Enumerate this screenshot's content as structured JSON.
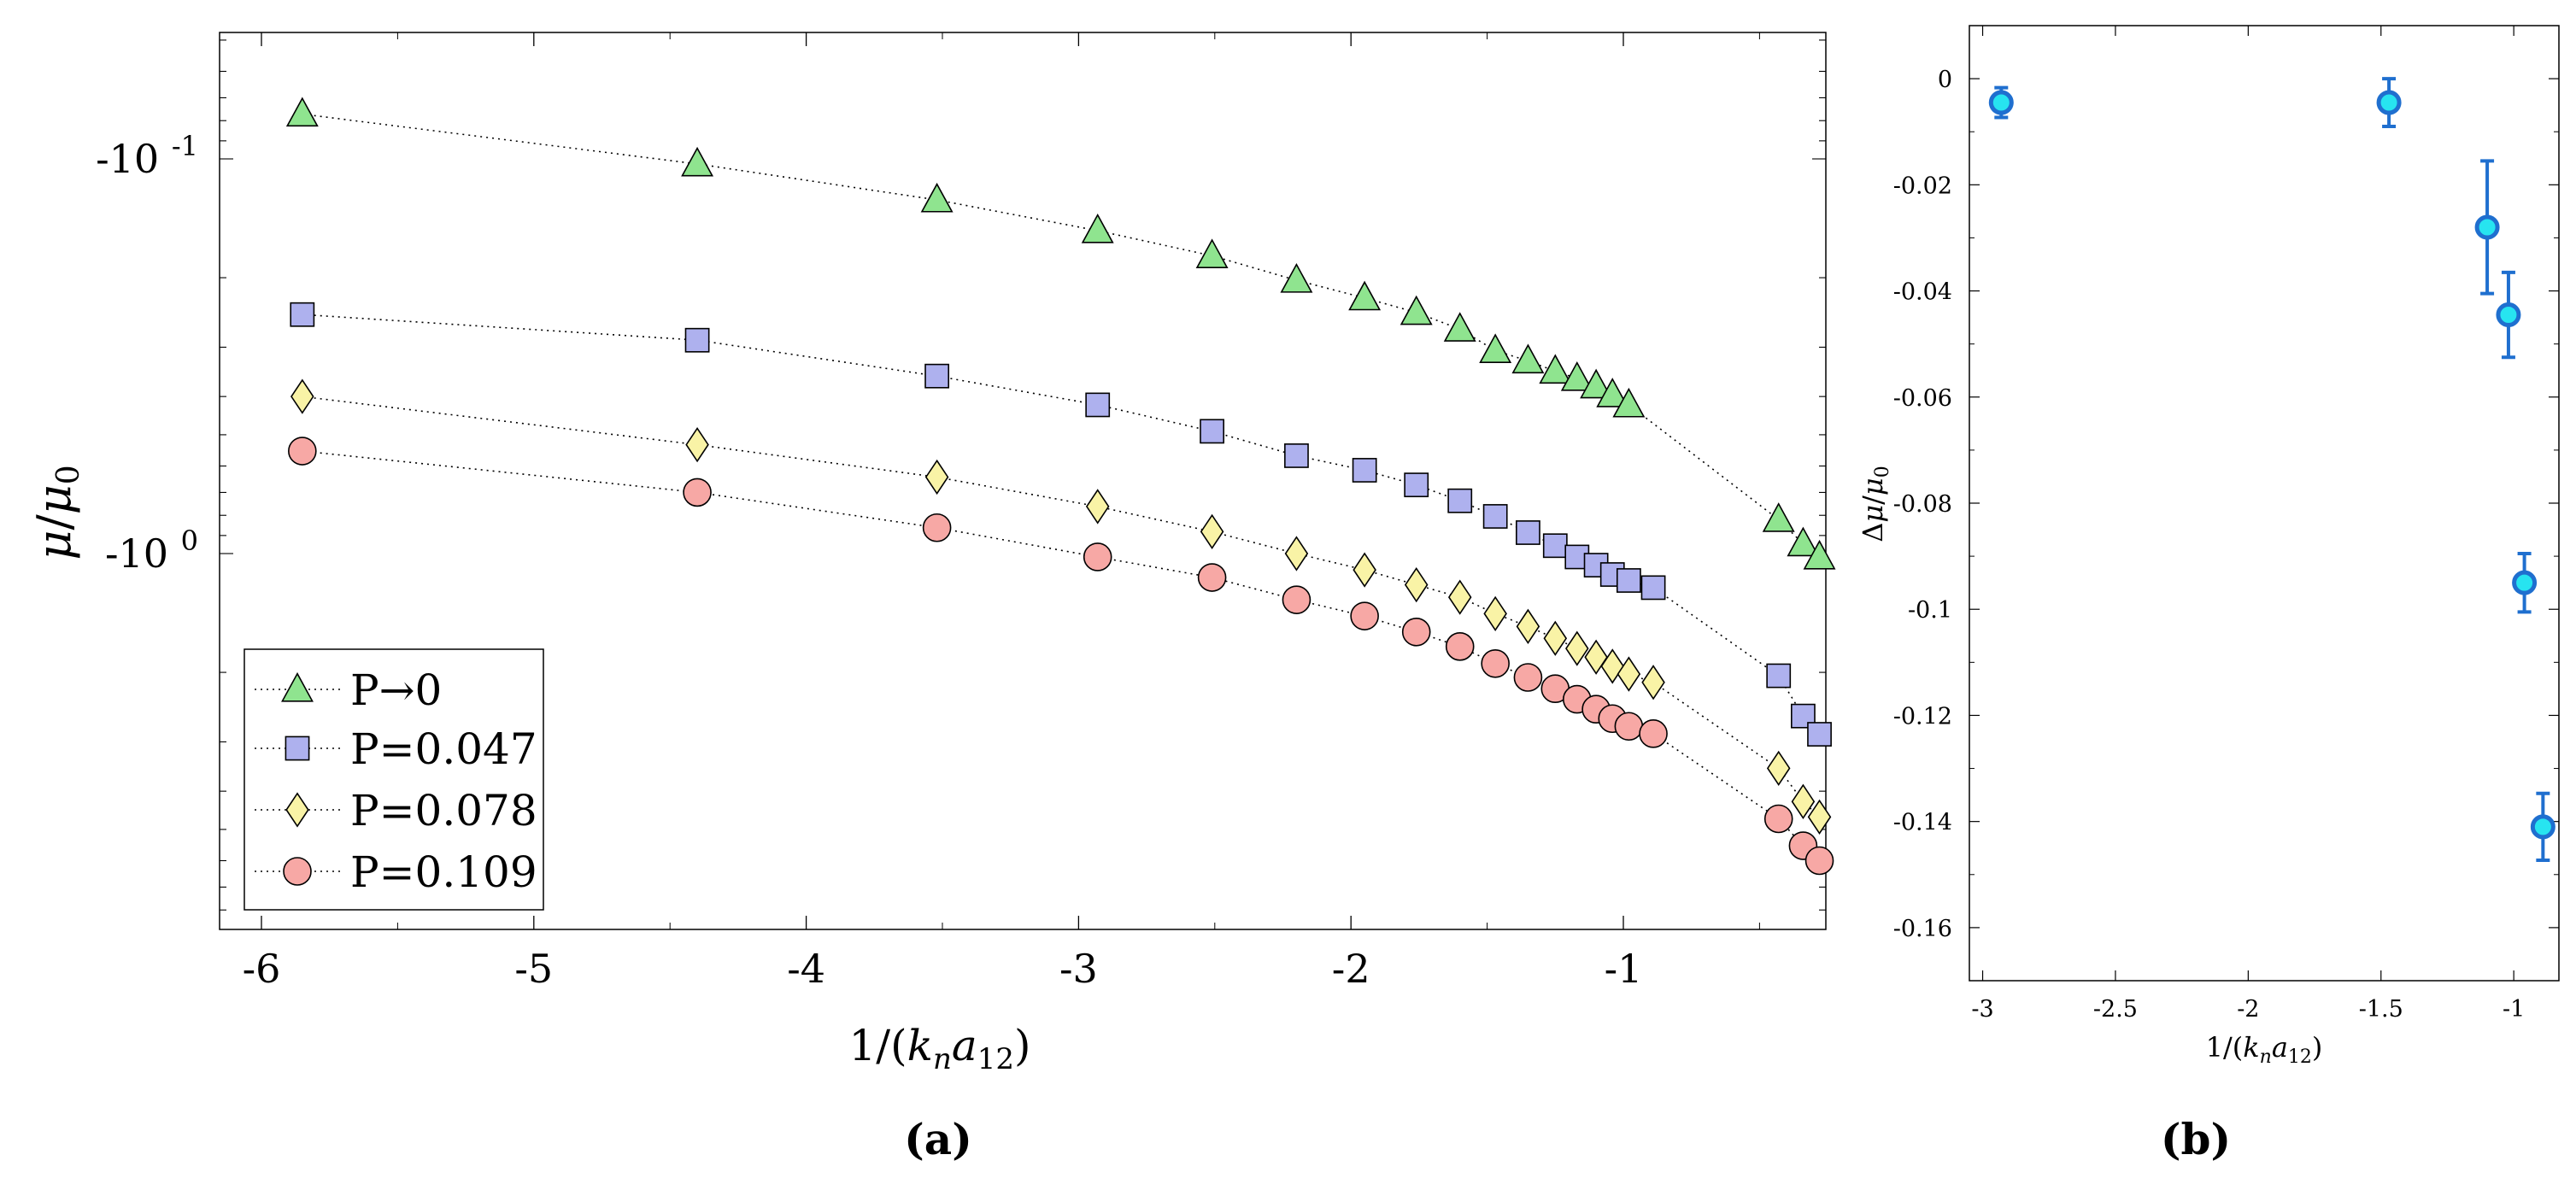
{
  "chart_data": [
    {
      "panel_label": "(a)",
      "type": "line",
      "xlabel": "1/(k_n a_12)",
      "ylabel": "μ/μ0",
      "yscale": "log",
      "xlim": [
        -6.0,
        0.0
      ],
      "x_ticks": [
        -6,
        -5,
        -4,
        -3,
        -2,
        -1
      ],
      "y_tick_labels": [
        {
          "value": 0.1,
          "base": "-10",
          "exp": "-1"
        },
        {
          "value": 1.0,
          "base": "-10",
          "exp": "0"
        }
      ],
      "x": [
        -5.85,
        -4.4,
        -3.52,
        -2.93,
        -2.51,
        -2.2,
        -1.95,
        -1.76,
        -1.6,
        -1.47,
        -1.35,
        -1.25,
        -1.17,
        -1.1,
        -1.04,
        -0.98,
        -0.89,
        -0.43,
        -0.34,
        -0.28
      ],
      "series": [
        {
          "name": "P→0",
          "marker": "triangle",
          "color": "#8fe48f",
          "values": [
            0.077,
            0.103,
            0.127,
            0.152,
            0.176,
            0.203,
            0.225,
            0.245,
            0.27,
            0.306,
            0.325,
            0.345,
            0.36,
            0.376,
            0.396,
            0.42,
            null,
            0.82,
            0.945,
            1.02
          ]
        },
        {
          "name": "P=0.047",
          "marker": "square",
          "color": "#aeb1ee",
          "values": [
            0.248,
            0.288,
            0.355,
            0.42,
            0.49,
            0.565,
            0.615,
            0.67,
            0.735,
            0.805,
            0.885,
            0.955,
            1.02,
            1.07,
            1.13,
            1.17,
            1.22,
            2.04,
            2.58,
            2.87
          ]
        },
        {
          "name": "P=0.078",
          "marker": "diamond",
          "color": "#f9f3a6",
          "values": [
            0.4,
            0.53,
            0.64,
            0.76,
            0.88,
            1.0,
            1.1,
            1.2,
            1.29,
            1.42,
            1.53,
            1.64,
            1.74,
            1.83,
            1.93,
            2.02,
            2.12,
            3.5,
            4.25,
            4.65
          ]
        },
        {
          "name": "P=0.109",
          "marker": "circle",
          "color": "#f7a8a5",
          "values": [
            0.55,
            0.7,
            0.86,
            1.02,
            1.15,
            1.31,
            1.44,
            1.58,
            1.72,
            1.9,
            2.06,
            2.2,
            2.34,
            2.48,
            2.62,
            2.74,
            2.86,
            4.7,
            5.5,
            6.0
          ]
        }
      ]
    },
    {
      "panel_label": "(b)",
      "type": "scatter",
      "xlabel": "1/(k_n a_12)",
      "ylabel": "Δμ/μ0",
      "xlim": [
        -3.05,
        -0.83
      ],
      "ylim": [
        -0.17,
        0.01
      ],
      "x_ticks": [
        -3,
        -2.5,
        -2,
        -1.5,
        -1
      ],
      "x_tick_labels": [
        "-3",
        "-2.5",
        "-2",
        "-1.5",
        "-1"
      ],
      "y_ticks": [
        0,
        -0.02,
        -0.04,
        -0.06,
        -0.08,
        -0.1,
        -0.12,
        -0.14,
        -0.16
      ],
      "y_tick_labels": [
        "0",
        "-0.02",
        "-0.04",
        "-0.06",
        "-0.08",
        "-0.1",
        "-0.12",
        "-0.14",
        "-0.16"
      ],
      "points": [
        {
          "x": -2.93,
          "y": -0.0045,
          "err": 0.0028
        },
        {
          "x": -1.47,
          "y": -0.0045,
          "err": 0.0045
        },
        {
          "x": -1.1,
          "y": -0.028,
          "err": 0.0125
        },
        {
          "x": -1.02,
          "y": -0.0445,
          "err": 0.008
        },
        {
          "x": -0.96,
          "y": -0.095,
          "err": 0.0055
        },
        {
          "x": -0.89,
          "y": -0.141,
          "err": 0.0063
        }
      ],
      "marker_color": "#27e4f0",
      "edge_color": "#1f6fcf"
    }
  ]
}
